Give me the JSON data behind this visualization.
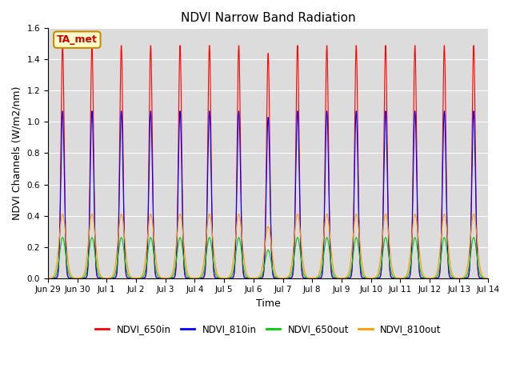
{
  "title": "NDVI Narrow Band Radiation",
  "xlabel": "Time",
  "ylabel": "NDVI Channels (W/m2/nm)",
  "ylim": [
    0.0,
    1.6
  ],
  "background_color": "#dcdcdc",
  "annotation_label": "TA_met",
  "annotation_bg": "#ffffcc",
  "annotation_border": "#cc8800",
  "series_order": [
    "NDVI_650in",
    "NDVI_810in",
    "NDVI_650out",
    "NDVI_810out"
  ],
  "series": {
    "NDVI_650in": {
      "color": "#ff0000",
      "peak": 1.49,
      "sigma": 0.055,
      "label": "NDVI_650in"
    },
    "NDVI_810in": {
      "color": "#0000ff",
      "peak": 1.07,
      "sigma": 0.06,
      "label": "NDVI_810in"
    },
    "NDVI_650out": {
      "color": "#00cc00",
      "peak": 0.26,
      "sigma": 0.1,
      "label": "NDVI_650out"
    },
    "NDVI_810out": {
      "color": "#ff9900",
      "peak": 0.41,
      "sigma": 0.115,
      "label": "NDVI_810out"
    }
  },
  "x_tick_labels": [
    "Jun 29",
    "Jun 30",
    "Jul 1",
    "Jul 2",
    "Jul 3",
    "Jul 4",
    "Jul 5",
    "Jul 6",
    "Jul 7",
    "Jul 8",
    "Jul 9",
    "Jul 10",
    "Jul 11",
    "Jul 12",
    "Jul 13",
    "Jul 14"
  ],
  "n_days": 16,
  "special_peaks": {
    "7": {
      "NDVI_650in": 1.44,
      "NDVI_810in": 1.03,
      "NDVI_650out": 0.18,
      "NDVI_810out": 0.33
    }
  }
}
